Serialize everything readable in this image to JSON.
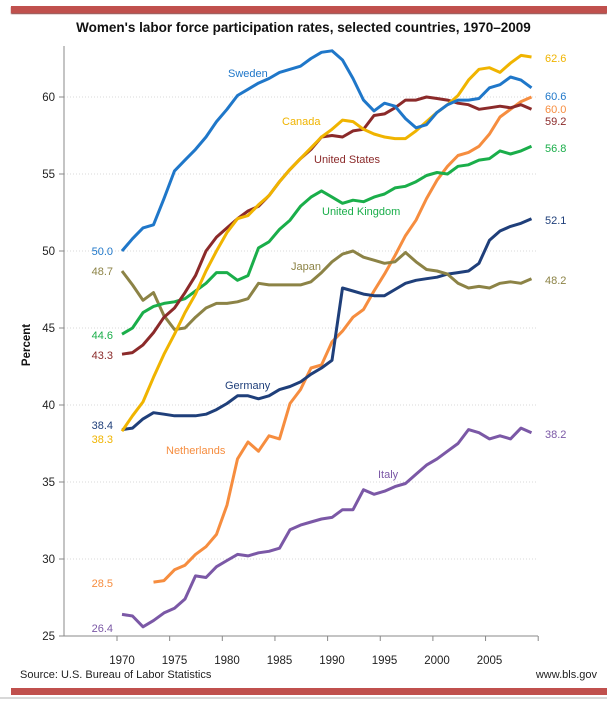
{
  "header": {
    "title": "Women's labor force participation rates, selected countries, 1970–2009"
  },
  "footer": {
    "source": "Source: U.S. Bureau of Labor Statistics",
    "site": "www.bls.gov"
  },
  "colors": {
    "accent_bar": "#c0504d"
  },
  "chart_data": {
    "type": "line",
    "title": "Women's labor force participation rates, selected countries, 1970–2009",
    "xlabel": "",
    "ylabel": "Percent",
    "ylim": [
      25,
      63
    ],
    "yticks": [
      25,
      30,
      35,
      40,
      45,
      50,
      55,
      60
    ],
    "xticks": [
      "1970",
      "1975",
      "1980",
      "1985",
      "1990",
      "1995",
      "2000",
      "2005"
    ],
    "grid": "horizontal dotted",
    "legend": "inline labels",
    "x": [
      1970,
      1971,
      1972,
      1973,
      1974,
      1975,
      1976,
      1977,
      1978,
      1979,
      1980,
      1981,
      1982,
      1983,
      1984,
      1985,
      1986,
      1987,
      1988,
      1989,
      1990,
      1991,
      1992,
      1993,
      1994,
      1995,
      1996,
      1997,
      1998,
      1999,
      2000,
      2001,
      2002,
      2003,
      2004,
      2005,
      2006,
      2007,
      2008,
      2009
    ],
    "series": [
      {
        "name": "Sweden",
        "color": "#1f77c9",
        "start_label": "50.0",
        "end_label": "60.6",
        "values": [
          50.0,
          50.8,
          51.5,
          51.7,
          53.4,
          55.2,
          55.9,
          56.6,
          57.4,
          58.4,
          59.2,
          60.1,
          60.5,
          60.9,
          61.2,
          61.6,
          61.8,
          62.0,
          62.5,
          62.9,
          63.0,
          62.4,
          61.2,
          59.8,
          59.1,
          59.6,
          59.4,
          58.6,
          58.0,
          58.2,
          59.0,
          59.5,
          59.8,
          59.8,
          59.9,
          60.6,
          60.8,
          61.3,
          61.1,
          60.6
        ]
      },
      {
        "name": "Canada",
        "color": "#f0b400",
        "start_label": "38.3",
        "end_label": "62.6",
        "values": [
          38.3,
          39.3,
          40.2,
          41.8,
          43.3,
          44.6,
          46.0,
          47.2,
          48.7,
          50.0,
          51.2,
          52.1,
          52.3,
          53.0,
          53.6,
          54.5,
          55.3,
          56.0,
          56.7,
          57.4,
          57.9,
          58.5,
          58.4,
          57.9,
          57.6,
          57.4,
          57.3,
          57.3,
          57.8,
          58.4,
          59.0,
          59.5,
          60.1,
          61.1,
          61.8,
          61.9,
          61.6,
          62.2,
          62.7,
          62.6
        ]
      },
      {
        "name": "United States",
        "color": "#8b2a2a",
        "start_label": "43.3",
        "end_label": "59.2",
        "values": [
          43.3,
          43.4,
          43.9,
          44.7,
          45.7,
          46.3,
          47.3,
          48.4,
          50.0,
          50.9,
          51.5,
          52.1,
          52.6,
          52.9,
          53.6,
          54.5,
          55.3,
          56.0,
          56.6,
          57.4,
          57.5,
          57.4,
          57.8,
          57.9,
          58.8,
          58.9,
          59.3,
          59.8,
          59.8,
          60.0,
          59.9,
          59.8,
          59.6,
          59.5,
          59.2,
          59.3,
          59.4,
          59.3,
          59.5,
          59.2
        ]
      },
      {
        "name": "United Kingdom",
        "color": "#1aae4a",
        "start_label": "44.6",
        "end_label": "56.8",
        "values": [
          44.6,
          45.0,
          46.0,
          46.4,
          46.6,
          46.7,
          46.9,
          47.4,
          47.9,
          48.6,
          48.6,
          48.1,
          48.4,
          50.2,
          50.6,
          51.4,
          52.0,
          52.9,
          53.5,
          53.9,
          53.5,
          53.1,
          53.3,
          53.2,
          53.5,
          53.7,
          54.1,
          54.2,
          54.5,
          54.9,
          55.1,
          55.0,
          55.5,
          55.6,
          55.9,
          56.0,
          56.5,
          56.3,
          56.5,
          56.8
        ]
      },
      {
        "name": "Japan",
        "color": "#8c8346",
        "start_label": "48.7",
        "end_label": "48.2",
        "values": [
          48.7,
          47.8,
          46.8,
          47.3,
          45.8,
          44.9,
          45.0,
          45.7,
          46.3,
          46.6,
          46.6,
          46.7,
          46.9,
          47.9,
          47.8,
          47.8,
          47.8,
          47.8,
          48.0,
          48.6,
          49.3,
          49.8,
          50.0,
          49.6,
          49.4,
          49.2,
          49.3,
          49.9,
          49.3,
          48.8,
          48.7,
          48.5,
          47.9,
          47.6,
          47.7,
          47.6,
          47.9,
          48.0,
          47.9,
          48.2
        ]
      },
      {
        "name": "Germany",
        "color": "#1f3f7a",
        "start_label": "38.4",
        "end_label": "52.1",
        "values": [
          38.4,
          38.5,
          39.1,
          39.5,
          39.4,
          39.3,
          39.3,
          39.3,
          39.4,
          39.7,
          40.1,
          40.6,
          40.6,
          40.4,
          40.6,
          41.0,
          41.2,
          41.5,
          42.0,
          42.4,
          42.9,
          47.6,
          47.4,
          47.2,
          47.1,
          47.1,
          47.5,
          47.9,
          48.1,
          48.2,
          48.3,
          48.5,
          48.6,
          48.7,
          49.2,
          50.7,
          51.3,
          51.6,
          51.8,
          52.1
        ]
      },
      {
        "name": "Netherlands",
        "color": "#f68d3f",
        "start_label": "28.5",
        "end_label": "60.0",
        "values": [
          null,
          null,
          null,
          28.5,
          28.6,
          29.3,
          29.6,
          30.3,
          30.8,
          31.6,
          33.5,
          36.5,
          37.6,
          37.0,
          38.0,
          37.8,
          40.1,
          41.0,
          42.4,
          42.6,
          44.1,
          44.8,
          45.7,
          46.2,
          47.4,
          48.5,
          49.7,
          51.0,
          52.0,
          53.4,
          54.6,
          55.5,
          56.2,
          56.4,
          56.8,
          57.6,
          58.7,
          59.2,
          59.7,
          60.0
        ]
      },
      {
        "name": "Italy",
        "color": "#7b58a6",
        "start_label": "26.4",
        "end_label": "38.2",
        "values": [
          26.4,
          26.3,
          25.6,
          26.0,
          26.5,
          26.8,
          27.4,
          28.9,
          28.8,
          29.5,
          29.9,
          30.3,
          30.2,
          30.4,
          30.5,
          30.7,
          31.9,
          32.2,
          32.4,
          32.6,
          32.7,
          33.2,
          33.2,
          34.5,
          34.2,
          34.4,
          34.7,
          34.9,
          35.5,
          36.1,
          36.5,
          37.0,
          37.5,
          38.4,
          38.2,
          37.8,
          38.0,
          37.8,
          38.5,
          38.2
        ]
      }
    ],
    "inline_labels": [
      "Sweden",
      "Canada",
      "United States",
      "United Kingdom",
      "Japan",
      "Germany",
      "Netherlands",
      "Italy"
    ]
  }
}
